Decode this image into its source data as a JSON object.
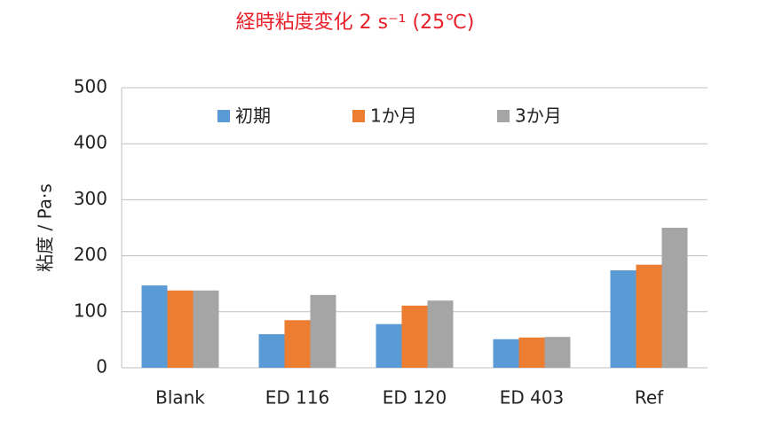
{
  "chart_data": {
    "type": "bar",
    "title": "経時粘度変化 2 s⁻¹ (25℃)",
    "y_label": "粘度 / Pa·s",
    "categories": [
      "Blank",
      "ED 116",
      "ED 120",
      "ED 403",
      "Ref"
    ],
    "series": [
      {
        "name": "初期",
        "color": "#5b9bd5",
        "values": [
          147,
          60,
          78,
          51,
          174
        ]
      },
      {
        "name": "1か月",
        "color": "#ed7d31",
        "values": [
          138,
          85,
          111,
          54,
          184
        ]
      },
      {
        "name": "3か月",
        "color": "#a5a5a5",
        "values": [
          138,
          130,
          120,
          55,
          250
        ]
      }
    ],
    "ylim": [
      0,
      500
    ],
    "yticks": [
      0,
      100,
      200,
      300,
      400,
      500
    ],
    "grid": true,
    "legend": "top"
  }
}
